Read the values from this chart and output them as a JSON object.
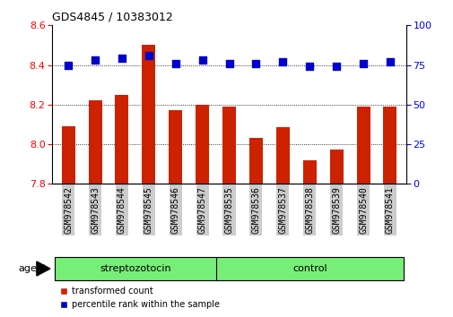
{
  "title": "GDS4845 / 10383012",
  "categories": [
    "GSM978542",
    "GSM978543",
    "GSM978544",
    "GSM978545",
    "GSM978546",
    "GSM978547",
    "GSM978535",
    "GSM978536",
    "GSM978537",
    "GSM978538",
    "GSM978539",
    "GSM978540",
    "GSM978541"
  ],
  "bar_values": [
    8.09,
    8.22,
    8.25,
    8.5,
    8.17,
    8.2,
    8.19,
    8.03,
    8.085,
    7.92,
    7.975,
    8.19,
    8.19
  ],
  "percentile_values": [
    75,
    78,
    79,
    81,
    76,
    78,
    76,
    76,
    77,
    74,
    74,
    76,
    77
  ],
  "bar_color": "#cc2200",
  "dot_color": "#0000cc",
  "ylim_left": [
    7.8,
    8.6
  ],
  "ylim_right": [
    0,
    100
  ],
  "yticks_left": [
    7.8,
    8.0,
    8.2,
    8.4,
    8.6
  ],
  "yticks_right": [
    0,
    25,
    50,
    75,
    100
  ],
  "grid_values": [
    8.0,
    8.2,
    8.4
  ],
  "streptozotocin_indices": [
    0,
    1,
    2,
    3,
    4,
    5
  ],
  "control_indices": [
    6,
    7,
    8,
    9,
    10,
    11,
    12
  ],
  "streptozotocin_label": "streptozotocin",
  "control_label": "control",
  "agent_label": "agent",
  "legend_bar_label": "transformed count",
  "legend_dot_label": "percentile rank within the sample",
  "bar_width": 0.5,
  "separator_index": 6,
  "group_bg_color": "#77ee77",
  "tick_label_bg": "#cccccc",
  "dot_size": 28,
  "fig_width": 5.06,
  "fig_height": 3.54,
  "dpi": 100
}
